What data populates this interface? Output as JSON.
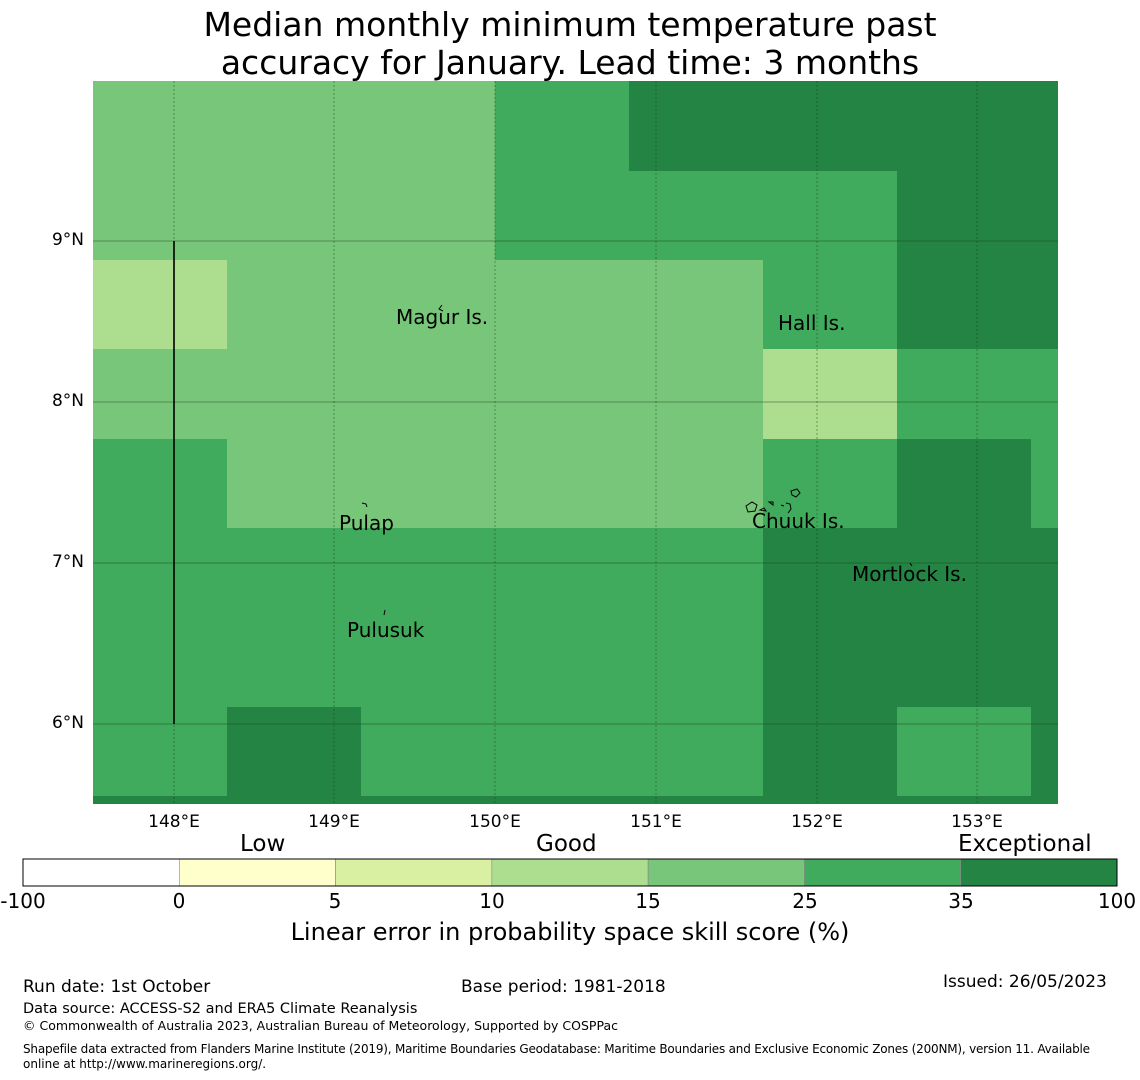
{
  "title_line1": "Median monthly minimum temperature past",
  "title_line2": "accuracy for January. Lead time: 3 months",
  "map": {
    "lat_labels": [
      "9°N",
      "8°N",
      "7°N",
      "6°N"
    ],
    "lon_labels": [
      "148°E",
      "149°E",
      "150°E",
      "151°E",
      "152°E",
      "153°E"
    ],
    "places": [
      {
        "name": "Magur Is."
      },
      {
        "name": "Hall Is."
      },
      {
        "name": "Pulap"
      },
      {
        "name": "Chuuk Is."
      },
      {
        "name": "Mortlock Is."
      },
      {
        "name": "Pulusuk"
      }
    ]
  },
  "colorbar": {
    "categories": [
      "Low",
      "Good",
      "Exceptional"
    ],
    "ticks": [
      "-100",
      "0",
      "5",
      "10",
      "15",
      "25",
      "35",
      "100"
    ],
    "colors": [
      "#ffffff",
      "#ffffcc",
      "#d9f0a3",
      "#addd8e",
      "#78c679",
      "#41ab5d",
      "#238443"
    ],
    "label": "Linear error in probability space skill score (%)"
  },
  "footer": {
    "run_date": "Run date: 1st October",
    "base_period": "Base period: 1981-2018",
    "issued": "Issued: 26/05/2023",
    "data_source": "Data source: ACCESS-S2 and ERA5 Climate Reanalysis",
    "copyright": "© Commonwealth of Australia 2023, Australian Bureau of Meteorology, Supported by COSPPac",
    "shapefile_line1": "Shapefile data extracted from Flanders Marine Institute (2019), Maritime Boundaries Geodatabase: Maritime Boundaries and Exclusive Economic Zones (200NM), version 11. Available",
    "shapefile_line2": "online at http://www.marineregions.org/."
  }
}
